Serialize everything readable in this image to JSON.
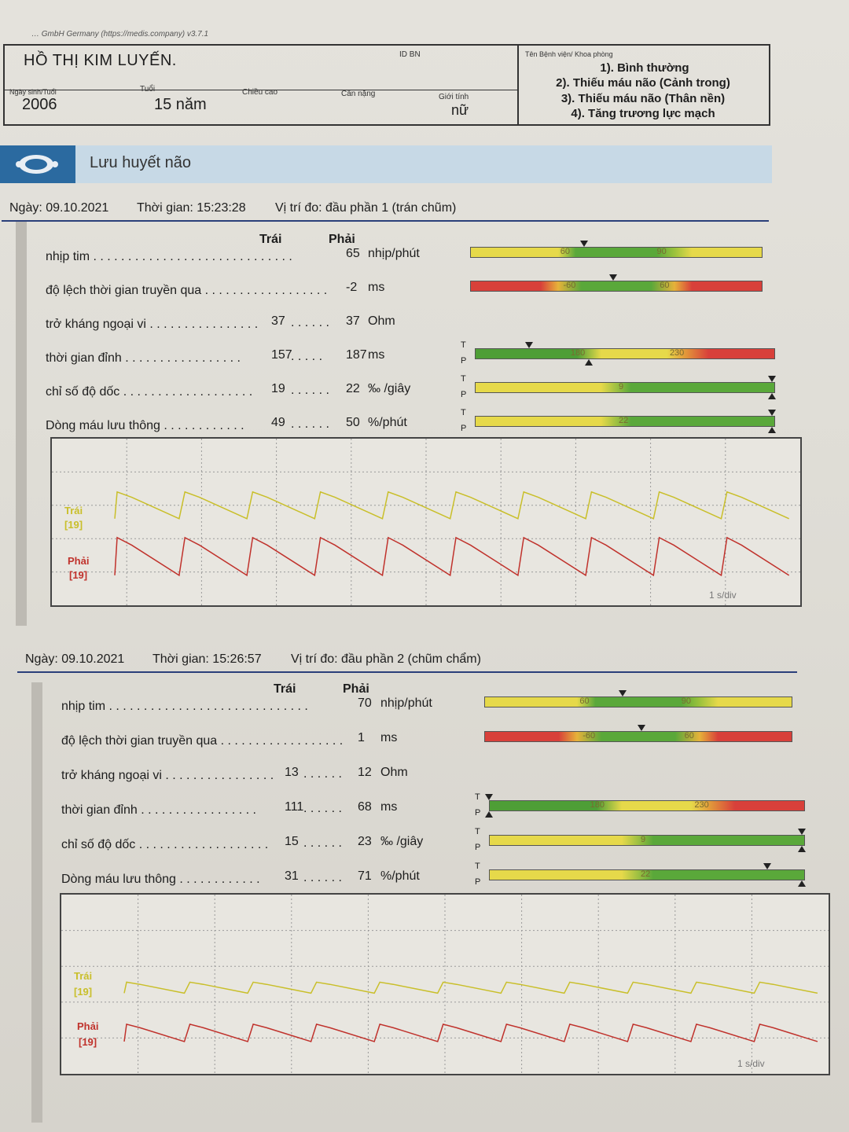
{
  "software_line": "… GmbH Germany (https://medis.company) v3.7.1",
  "patient": {
    "name": "HỒ THỊ KIM LUYẾN.",
    "id_label": "ID BN",
    "dob_label": "Ngày sinh/Tuổi",
    "dob": "2006",
    "age_label": "Tuổi",
    "age": "15 năm",
    "height_label": "Chiều cao",
    "weight_label": "Cân nặng",
    "sex_label": "Giới tính",
    "sex": "nữ",
    "dept_label": "Tên Bệnh viện/ Khoa phòng",
    "diagnoses": [
      "1). Bình thường",
      "2). Thiếu máu não (Cảnh trong)",
      "3). Thiếu máu não (Thân nền)",
      "4). Tăng trương lực mạch"
    ]
  },
  "banner_title": "Lưu huyết não",
  "col_left": "Trái",
  "col_right": "Phải",
  "tp_t": "T",
  "tp_p": "P",
  "sections": [
    {
      "date": "Ngày: 09.10.2021",
      "time": "Thời gian: 15:23:28",
      "position": "Vị trí đo: đầu phần 1 (trán chũm)",
      "rows": [
        {
          "label": "nhịp tim . . . . . . . . . . . . . . . . . . . . . . . . . . . . .",
          "left": "",
          "sep": "",
          "right": "65",
          "unit": "nhịp/phút",
          "scale_ticks": [
            "60",
            "90"
          ],
          "marker_t": 0.39,
          "marker_p": null
        },
        {
          "label": "độ lệch thời gian truyền qua . . . . . . . . . . . . . . . . . .",
          "left": "",
          "sep": "",
          "right": "-2",
          "unit": "ms",
          "scale_ticks": [
            "-60",
            "60"
          ],
          "marker_t": 0.49,
          "marker_p": null
        },
        {
          "label": "trở kháng ngoại vi . . . . . . . . . . . . . . . .",
          "left": "37",
          "sep": ". . . . . .",
          "right": "37",
          "unit": "Ohm",
          "scale_ticks": [],
          "marker_t": null,
          "marker_p": null
        },
        {
          "label": "thời gian đỉnh . . . . . . . . . . . . . . . . .",
          "left": "157",
          "sep": ". . . . .",
          "right": "187",
          "unit": "ms",
          "scale_ticks": [
            "180",
            "230"
          ],
          "marker_t": 0.18,
          "marker_p": 0.38
        },
        {
          "label": "chỉ số độ dốc . . . . . . . . . . . . . . . . . . .",
          "left": "19",
          "sep": ". . . . . .",
          "right": "22",
          "unit": "‰ /giây",
          "scale_ticks": [
            "9"
          ],
          "marker_t": 0.99,
          "marker_p": 0.99
        },
        {
          "label": "Dòng máu lưu thông . . . . . . . . . . . .",
          "left": "49",
          "sep": ". . . . . .",
          "right": "50",
          "unit": "%/phút",
          "scale_ticks": [
            "22"
          ],
          "marker_t": 0.99,
          "marker_p": 0.99
        }
      ],
      "wave_left_label": "Trái",
      "wave_left_num": "[19]",
      "wave_right_label": "Phải",
      "wave_right_num": "[19]",
      "time_div": "1 s/div"
    },
    {
      "date": "Ngày: 09.10.2021",
      "time": "Thời gian: 15:26:57",
      "position": "Vị trí đo: đầu phần 2 (chũm chẩm)",
      "rows": [
        {
          "label": "nhịp tim . . . . . . . . . . . . . . . . . . . . . . . . . . . . .",
          "left": "",
          "sep": "",
          "right": "70",
          "unit": "nhịp/phút",
          "scale_ticks": [
            "60",
            "90"
          ],
          "marker_t": 0.45,
          "marker_p": null
        },
        {
          "label": "độ lệch thời gian truyền qua . . . . . . . . . . . . . . . . . .",
          "left": "",
          "sep": "",
          "right": "1",
          "unit": "ms",
          "scale_ticks": [
            "-60",
            "60"
          ],
          "marker_t": 0.51,
          "marker_p": null
        },
        {
          "label": "trở kháng ngoại vi . . . . . . . . . . . . . . . .",
          "left": "13",
          "sep": ". . . . . .",
          "right": "12",
          "unit": "Ohm",
          "scale_ticks": [],
          "marker_t": null,
          "marker_p": null
        },
        {
          "label": "thời gian đỉnh . . . . . . . . . . . . . . . . .",
          "left": "111",
          "sep": ". . . . . .",
          "right": "68",
          "unit": "ms",
          "scale_ticks": [
            "180",
            "230"
          ],
          "marker_t": 0.0,
          "marker_p": 0.0
        },
        {
          "label": "chỉ số độ dốc . . . . . . . . . . . . . . . . . . .",
          "left": "15",
          "sep": ". . . . . .",
          "right": "23",
          "unit": "‰ /giây",
          "scale_ticks": [
            "9"
          ],
          "marker_t": 0.99,
          "marker_p": 0.99
        },
        {
          "label": "Dòng máu lưu thông . . . . . . . . . . . .",
          "left": "31",
          "sep": ". . . . . .",
          "right": "71",
          "unit": "%/phút",
          "scale_ticks": [
            "22"
          ],
          "marker_t": 0.88,
          "marker_p": 0.99
        }
      ],
      "wave_left_label": "Trái",
      "wave_left_num": "[19]",
      "wave_right_label": "Phải",
      "wave_right_num": "[19]",
      "time_div": "1 s/div"
    }
  ],
  "colors": {
    "trace_left": "#c9bf2a",
    "trace_right": "#c0322c",
    "rule": "#2a3f7a",
    "banner": "#c7d9e6",
    "banner_icon": "#2b6aa0"
  }
}
